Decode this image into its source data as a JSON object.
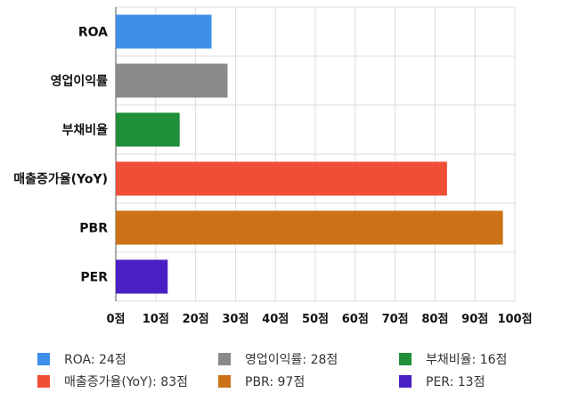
{
  "chart_data": {
    "type": "bar",
    "orientation": "horizontal",
    "categories": [
      "ROA",
      "영업이익률",
      "부채비율",
      "매출증가율(YoY)",
      "PBR",
      "PER"
    ],
    "values": [
      24,
      28,
      16,
      83,
      97,
      13
    ],
    "colors": [
      "#3d8fe8",
      "#8a8a8a",
      "#1f8f3a",
      "#ef4e37",
      "#cc7218",
      "#4a1fc4"
    ],
    "xlim": [
      0,
      100
    ],
    "x_ticks": [
      "0점",
      "10점",
      "20점",
      "30점",
      "40점",
      "50점",
      "60점",
      "70점",
      "80점",
      "90점",
      "100점"
    ],
    "grid": true,
    "legend_position": "bottom",
    "legend": [
      {
        "label": "ROA: 24점",
        "color": "#3d8fe8"
      },
      {
        "label": "영업이익률: 28점",
        "color": "#8a8a8a"
      },
      {
        "label": "부채비율: 16점",
        "color": "#1f8f3a"
      },
      {
        "label": "매출증가율(YoY): 83점",
        "color": "#ef4e37"
      },
      {
        "label": "PBR: 97점",
        "color": "#cc7218"
      },
      {
        "label": "PER: 13점",
        "color": "#4a1fc4"
      }
    ]
  }
}
